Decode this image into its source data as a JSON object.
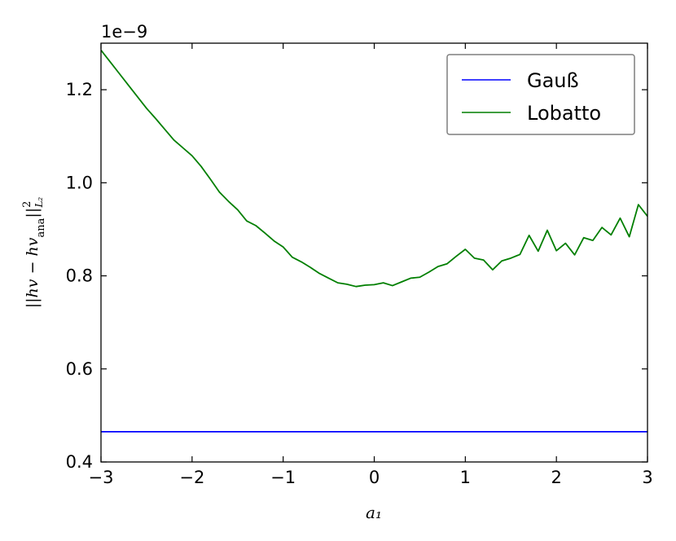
{
  "chart_data": {
    "type": "line",
    "xlabel": "a₁",
    "ylabel": "||hv − hv_ana||²_L₂",
    "ylabel_parts": {
      "main": "||hv − hv",
      "sub": "ana",
      "bars": "||",
      "sup": "2",
      "sub2": "L₂"
    },
    "y_offset_text": "1e−9",
    "xlim": [
      -3,
      3
    ],
    "ylim": [
      0.4,
      1.3
    ],
    "x_ticks": [
      -3,
      -2,
      -1,
      0,
      1,
      2,
      3
    ],
    "x_tick_labels": [
      "−3",
      "−2",
      "−1",
      "0",
      "1",
      "2",
      "3"
    ],
    "y_ticks": [
      0.4,
      0.6,
      0.8,
      1.0,
      1.2
    ],
    "y_tick_labels": [
      "0.4",
      "0.6",
      "0.8",
      "1.0",
      "1.2"
    ],
    "grid": false,
    "legend_position": "top-right",
    "series": [
      {
        "name": "Gauß",
        "color": "#0000ff",
        "x": [
          -3,
          3
        ],
        "y": [
          0.465,
          0.465
        ]
      },
      {
        "name": "Lobatto",
        "color": "#007f00",
        "x": [
          -3.0,
          -2.9,
          -2.8,
          -2.7,
          -2.6,
          -2.5,
          -2.4,
          -2.3,
          -2.2,
          -2.1,
          -2.0,
          -1.9,
          -1.8,
          -1.7,
          -1.6,
          -1.5,
          -1.4,
          -1.3,
          -1.2,
          -1.1,
          -1.0,
          -0.9,
          -0.8,
          -0.7,
          -0.6,
          -0.5,
          -0.4,
          -0.3,
          -0.2,
          -0.1,
          0.0,
          0.1,
          0.2,
          0.3,
          0.4,
          0.5,
          0.6,
          0.7,
          0.8,
          0.9,
          1.0,
          1.1,
          1.2,
          1.3,
          1.4,
          1.5,
          1.6,
          1.7,
          1.8,
          1.9,
          2.0,
          2.1,
          2.2,
          2.3,
          2.4,
          2.5,
          2.6,
          2.7,
          2.8,
          2.9,
          3.0
        ],
        "y": [
          1.285,
          1.26,
          1.235,
          1.21,
          1.185,
          1.16,
          1.138,
          1.115,
          1.092,
          1.075,
          1.058,
          1.035,
          1.008,
          0.98,
          0.96,
          0.942,
          0.918,
          0.908,
          0.892,
          0.875,
          0.862,
          0.84,
          0.83,
          0.818,
          0.805,
          0.795,
          0.785,
          0.782,
          0.777,
          0.78,
          0.781,
          0.785,
          0.779,
          0.787,
          0.795,
          0.797,
          0.808,
          0.82,
          0.826,
          0.842,
          0.857,
          0.838,
          0.834,
          0.813,
          0.832,
          0.838,
          0.846,
          0.887,
          0.853,
          0.898,
          0.854,
          0.87,
          0.845,
          0.882,
          0.876,
          0.904,
          0.888,
          0.924,
          0.884,
          0.953,
          0.928
        ]
      }
    ]
  }
}
